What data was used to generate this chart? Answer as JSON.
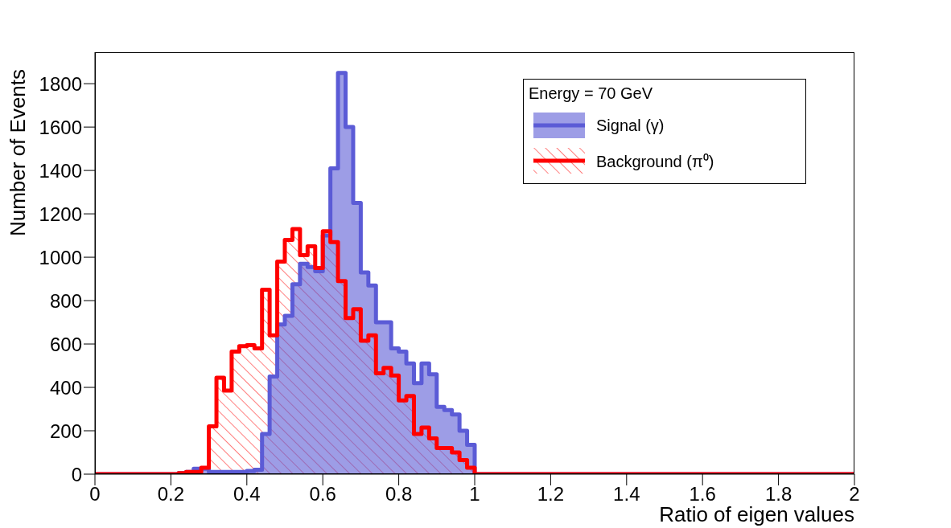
{
  "chart_data": {
    "type": "histogram",
    "xlabel": "Ratio of eigen values",
    "ylabel": "Number of Events",
    "legend_title": "Energy = 70 GeV",
    "legend": "top right",
    "bins": [
      0,
      0.02,
      0.04,
      0.06,
      0.08,
      0.1,
      0.12,
      0.14,
      0.16,
      0.18,
      0.2,
      0.22,
      0.24,
      0.26,
      0.28,
      0.3,
      0.32,
      0.34,
      0.36,
      0.38,
      0.4,
      0.42,
      0.44,
      0.46,
      0.48,
      0.5,
      0.52,
      0.54,
      0.56,
      0.58,
      0.6,
      0.62,
      0.64,
      0.66,
      0.68,
      0.7,
      0.72,
      0.74,
      0.76,
      0.78,
      0.8,
      0.82,
      0.84,
      0.86,
      0.88,
      0.9,
      0.92,
      0.94,
      0.96,
      0.98,
      1,
      1.02,
      1.04,
      1.06,
      1.08,
      1.1,
      1.12,
      1.14,
      1.16,
      1.18,
      1.2,
      1.22,
      1.24,
      1.26,
      1.28,
      1.3,
      1.32,
      1.34,
      1.36,
      1.38,
      1.4,
      1.42,
      1.44,
      1.46,
      1.48,
      1.5,
      1.52,
      1.54,
      1.56,
      1.58,
      1.6,
      1.62,
      1.64,
      1.66,
      1.68,
      1.7,
      1.72,
      1.74,
      1.76,
      1.78,
      1.8,
      1.82,
      1.84,
      1.86,
      1.88,
      1.9,
      1.92,
      1.94,
      1.96,
      1.98,
      2
    ],
    "series": [
      {
        "name": "Signal (γ)",
        "color": "#5b5bd6",
        "values": [
          0,
          0,
          0,
          0,
          0,
          0,
          0,
          0,
          0,
          0,
          0,
          5,
          10,
          25,
          25,
          10,
          10,
          10,
          10,
          10,
          15,
          20,
          185,
          450,
          690,
          730,
          875,
          970,
          955,
          935,
          1100,
          1410,
          1850,
          1600,
          1250,
          930,
          870,
          700,
          700,
          580,
          565,
          510,
          420,
          510,
          460,
          310,
          295,
          275,
          200,
          135,
          0,
          0,
          0,
          0,
          0,
          0,
          0,
          0,
          0,
          0,
          0,
          0,
          0,
          0,
          0,
          0,
          0,
          0,
          0,
          0,
          0,
          0,
          0,
          0,
          0,
          0,
          0,
          0,
          0,
          0,
          0,
          0,
          0,
          0,
          0,
          0,
          0,
          0,
          0,
          0,
          0,
          0,
          0,
          0,
          0,
          0,
          0,
          0,
          0,
          0
        ]
      },
      {
        "name": "Background (π⁰)",
        "color": "#ff0000",
        "values": [
          0,
          0,
          0,
          0,
          0,
          0,
          0,
          0,
          0,
          0,
          0,
          5,
          10,
          10,
          30,
          220,
          445,
          385,
          565,
          590,
          595,
          580,
          850,
          640,
          980,
          1080,
          1130,
          1010,
          1050,
          950,
          1120,
          1070,
          890,
          720,
          760,
          615,
          640,
          465,
          490,
          455,
          340,
          360,
          185,
          215,
          165,
          120,
          120,
          100,
          65,
          30,
          0,
          0,
          0,
          0,
          0,
          0,
          0,
          0,
          0,
          0,
          0,
          0,
          0,
          0,
          0,
          0,
          0,
          0,
          0,
          0,
          0,
          0,
          0,
          0,
          0,
          0,
          0,
          0,
          0,
          0,
          0,
          0,
          0,
          0,
          0,
          0,
          0,
          0,
          0,
          0,
          0,
          0,
          0,
          0,
          0,
          0,
          0,
          0,
          0,
          0
        ]
      }
    ],
    "xlim": [
      0,
      2
    ],
    "xticks": [
      0,
      0.2,
      0.4,
      0.6,
      0.8,
      1,
      1.2,
      1.4,
      1.6,
      1.8,
      2
    ],
    "ylim": [
      0,
      1945
    ],
    "yticks": [
      0,
      200,
      400,
      600,
      800,
      1000,
      1200,
      1400,
      1600,
      1800
    ]
  }
}
